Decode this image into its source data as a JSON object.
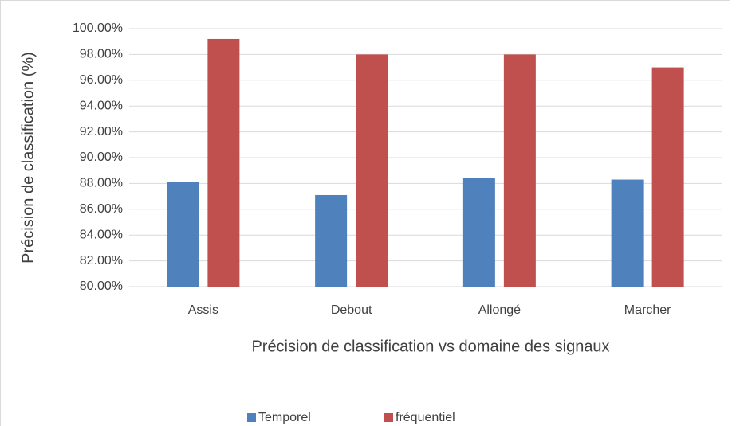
{
  "chart_data": {
    "type": "bar",
    "y_label": "Précision de classification (%)",
    "x_label": "Précision de classification vs domaine des signaux",
    "categories": [
      "Assis",
      "Debout",
      "Allongé",
      "Marcher"
    ],
    "series": [
      {
        "name": "Temporel",
        "color": "#4f81bd",
        "values": [
          88.1,
          87.1,
          88.4,
          88.3
        ]
      },
      {
        "name": "fréquentiel",
        "color": "#c0504d",
        "values": [
          99.2,
          98.0,
          98.0,
          97.0
        ]
      }
    ],
    "ylim": [
      80,
      100
    ],
    "yticks": [
      {
        "value": 80,
        "label": "80.00%"
      },
      {
        "value": 82,
        "label": "82.00%"
      },
      {
        "value": 84,
        "label": "84.00%"
      },
      {
        "value": 86,
        "label": "86.00%"
      },
      {
        "value": 88,
        "label": "88.00%"
      },
      {
        "value": 90,
        "label": "90.00%"
      },
      {
        "value": 92,
        "label": "92.00%"
      },
      {
        "value": 94,
        "label": "94.00%"
      },
      {
        "value": 96,
        "label": "96.00%"
      },
      {
        "value": 98,
        "label": "98.00%"
      },
      {
        "value": 100,
        "label": "100.00%"
      }
    ],
    "grid": true,
    "legend": "bottom"
  }
}
